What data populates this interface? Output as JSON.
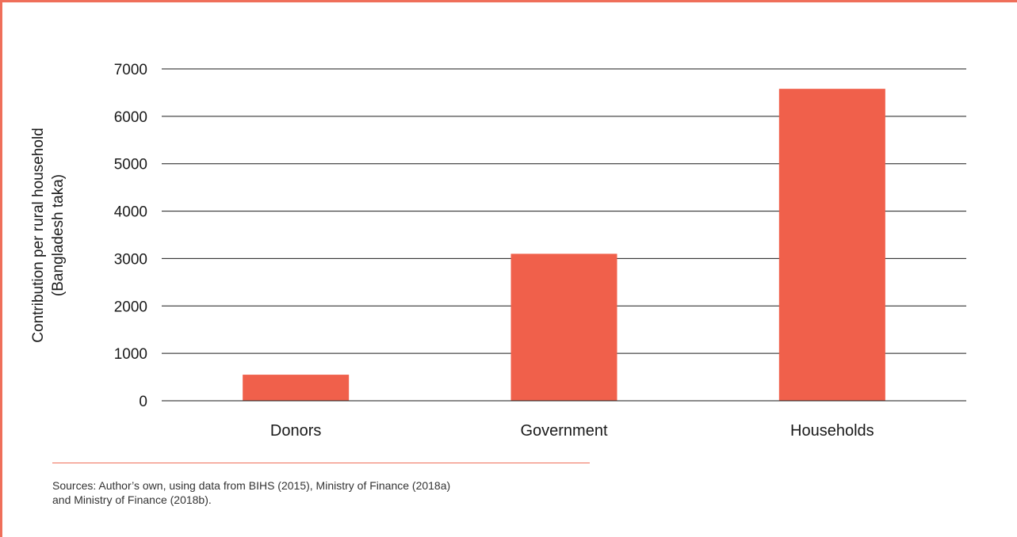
{
  "colors": {
    "bar": "#f0604b",
    "frame": "#ef6f5a",
    "grid": "#1a1a1a",
    "text": "#1a1a1a"
  },
  "chart_data": {
    "type": "bar",
    "categories": [
      "Donors",
      "Government",
      "Households"
    ],
    "values": [
      550,
      3100,
      6580
    ],
    "ylabel_lines": [
      "Contribution per rural household",
      "(Bangladesh taka)"
    ],
    "ylim": [
      0,
      7000
    ],
    "yticks": [
      0,
      1000,
      2000,
      3000,
      4000,
      5000,
      6000,
      7000
    ],
    "grid": true,
    "legend": "none"
  },
  "source": {
    "lines": [
      "Sources: Author’s own, using data from BIHS (2015), Ministry of Finance (2018a)",
      "and Ministry of Finance (2018b)."
    ]
  }
}
